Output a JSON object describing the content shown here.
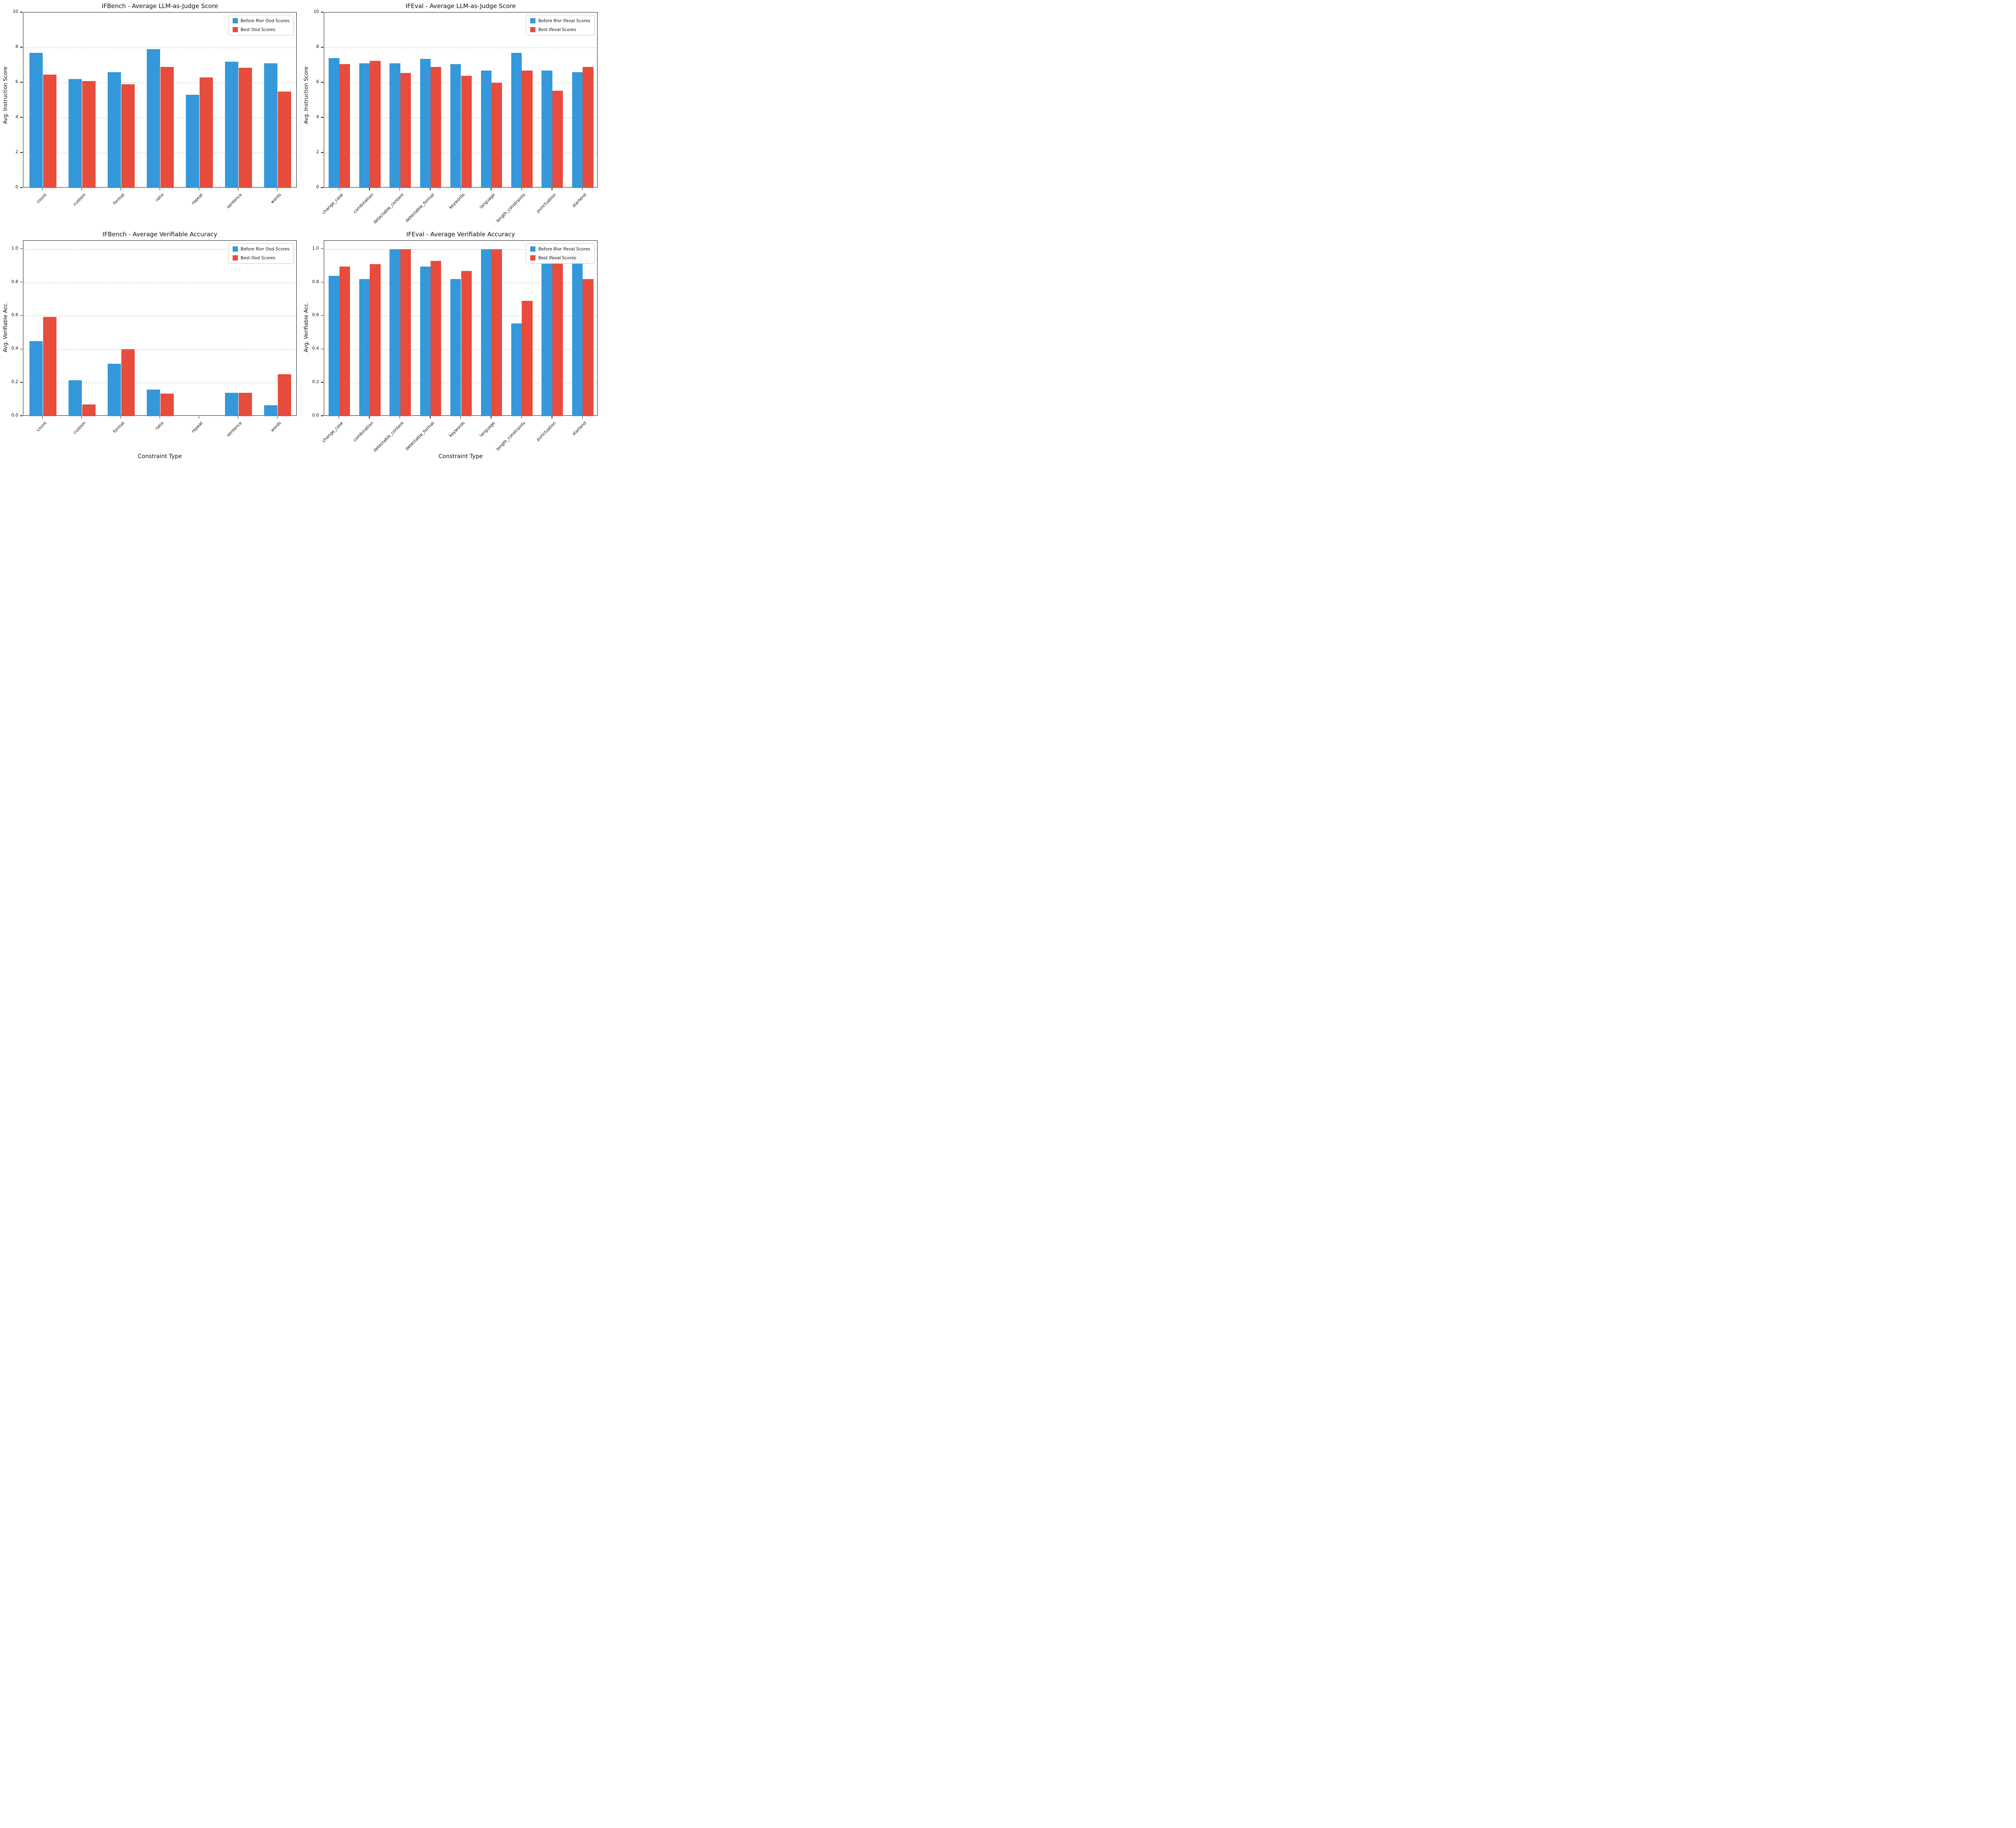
{
  "figure": {
    "background": "#ffffff",
    "accent_blue": "#3498db",
    "accent_red": "#e74c3c",
    "grid_color": "#bdbdbd",
    "axis_color": "#1a1a1a"
  },
  "chart_data": [
    {
      "id": "ifbench-judge",
      "type": "bar",
      "title": "IFBench - Average LLM-as-Judge Score",
      "ylabel": "Avg. Instruction Score",
      "xlabel": "",
      "ylim": [
        0,
        10
      ],
      "yticks": [
        0,
        2,
        4,
        6,
        8,
        10
      ],
      "ytick_labels": [
        "0",
        "2",
        "4",
        "6",
        "8",
        "10"
      ],
      "grid": "horizontal-dashed",
      "legend_position": "upper-right",
      "categories": [
        "count",
        "custom",
        "format",
        "ratio",
        "repeat",
        "sentence",
        "words"
      ],
      "series": [
        {
          "name": "Before Rlvr Ood Scores",
          "color": "#3498db",
          "values": [
            7.7,
            6.2,
            6.6,
            7.9,
            5.3,
            7.2,
            7.1
          ]
        },
        {
          "name": "Best Ood Scores",
          "color": "#e74c3c",
          "values": [
            6.45,
            6.1,
            5.9,
            6.9,
            6.3,
            6.85,
            5.5
          ]
        }
      ]
    },
    {
      "id": "ifeval-judge",
      "type": "bar",
      "title": "IFEval - Average LLM-as-Judge Score",
      "ylabel": "Avg. Instruction Score",
      "xlabel": "",
      "ylim": [
        0,
        10
      ],
      "yticks": [
        0,
        2,
        4,
        6,
        8,
        10
      ],
      "ytick_labels": [
        "0",
        "2",
        "4",
        "6",
        "8",
        "10"
      ],
      "grid": "horizontal-dashed",
      "legend_position": "upper-right",
      "categories": [
        "change_case",
        "combination",
        "detectable_content",
        "detectable_format",
        "keywords",
        "language",
        "length_constraints",
        "punctuation",
        "startend"
      ],
      "series": [
        {
          "name": "Before Rlvr Ifeval Scores",
          "color": "#3498db",
          "values": [
            7.4,
            7.1,
            7.1,
            7.35,
            7.05,
            6.7,
            7.7,
            6.7,
            6.6
          ]
        },
        {
          "name": "Best Ifeval Scores",
          "color": "#e74c3c",
          "values": [
            7.05,
            7.25,
            6.55,
            6.9,
            6.4,
            6.0,
            6.7,
            5.55,
            6.9
          ]
        }
      ]
    },
    {
      "id": "ifbench-verifiable",
      "type": "bar",
      "title": "IFBench - Average Verifiable Accuracy",
      "ylabel": "Avg. Verifiable Acc.",
      "xlabel": "Constraint Type",
      "ylim": [
        0,
        1.05
      ],
      "yticks": [
        0,
        0.2,
        0.4,
        0.6,
        0.8,
        1.0
      ],
      "ytick_labels": [
        "0.0",
        "0.2",
        "0.4",
        "0.6",
        "0.8",
        "1.0"
      ],
      "grid": "horizontal-dashed",
      "legend_position": "upper-right",
      "categories": [
        "count",
        "custom",
        "format",
        "ratio",
        "repeat",
        "sentence",
        "words"
      ],
      "series": [
        {
          "name": "Before Rlvr Ood Scores",
          "color": "#3498db",
          "values": [
            0.45,
            0.215,
            0.315,
            0.16,
            0.0,
            0.14,
            0.065
          ]
        },
        {
          "name": "Best Ood Scores",
          "color": "#e74c3c",
          "values": [
            0.595,
            0.07,
            0.4,
            0.135,
            0.0,
            0.14,
            0.25
          ]
        }
      ]
    },
    {
      "id": "ifeval-verifiable",
      "type": "bar",
      "title": "IFEval - Average Verifiable Accuracy",
      "ylabel": "Avg. Verifiable Acc.",
      "xlabel": "Constraint Type",
      "ylim": [
        0,
        1.05
      ],
      "yticks": [
        0,
        0.2,
        0.4,
        0.6,
        0.8,
        1.0
      ],
      "ytick_labels": [
        "0.0",
        "0.2",
        "0.4",
        "0.6",
        "0.8",
        "1.0"
      ],
      "grid": "horizontal-dashed",
      "legend_position": "upper-right",
      "categories": [
        "change_case",
        "combination",
        "detectable_content",
        "detectable_format",
        "keywords",
        "language",
        "length_constraints",
        "punctuation",
        "startend"
      ],
      "series": [
        {
          "name": "Before Rlvr Ifeval Scores",
          "color": "#3498db",
          "values": [
            0.84,
            0.82,
            1.0,
            0.895,
            0.82,
            1.0,
            0.555,
            1.0,
            1.0
          ]
        },
        {
          "name": "Best Ifeval Scores",
          "color": "#e74c3c",
          "values": [
            0.895,
            0.91,
            1.0,
            0.93,
            0.87,
            1.0,
            0.69,
            1.0,
            0.82
          ]
        }
      ]
    }
  ]
}
